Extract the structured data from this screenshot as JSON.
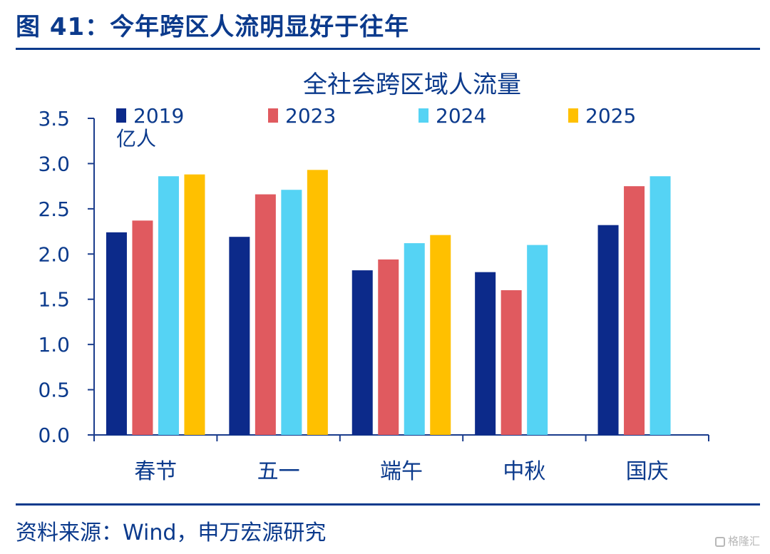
{
  "figure_title": "图 41：今年跨区人流明显好于往年",
  "source_note": "资料来源：Wind，申万宏源研究",
  "watermark": "格隆汇",
  "colors": {
    "brand_blue": "#0b3a8c",
    "series": [
      "#0c2a8a",
      "#e05a5f",
      "#55d3f4",
      "#ffc000"
    ]
  },
  "chart_data": {
    "type": "bar",
    "title": "全社会跨区域人流量",
    "unit_label": "亿人",
    "categories": [
      "春节",
      "五一",
      "端午",
      "中秋",
      "国庆"
    ],
    "series": [
      {
        "name": "2019",
        "values": [
          2.24,
          2.19,
          1.82,
          1.8,
          2.32
        ]
      },
      {
        "name": "2023",
        "values": [
          2.37,
          2.66,
          1.94,
          1.6,
          2.75
        ]
      },
      {
        "name": "2024",
        "values": [
          2.86,
          2.71,
          2.12,
          2.1,
          2.86
        ]
      },
      {
        "name": "2025",
        "values": [
          2.88,
          2.93,
          2.21,
          null,
          null
        ]
      }
    ],
    "ylim": [
      0,
      3.5
    ],
    "yticks": [
      "0.0",
      "0.5",
      "1.0",
      "1.5",
      "2.0",
      "2.5",
      "3.0",
      "3.5"
    ],
    "legend_position": "top",
    "grid": false
  }
}
